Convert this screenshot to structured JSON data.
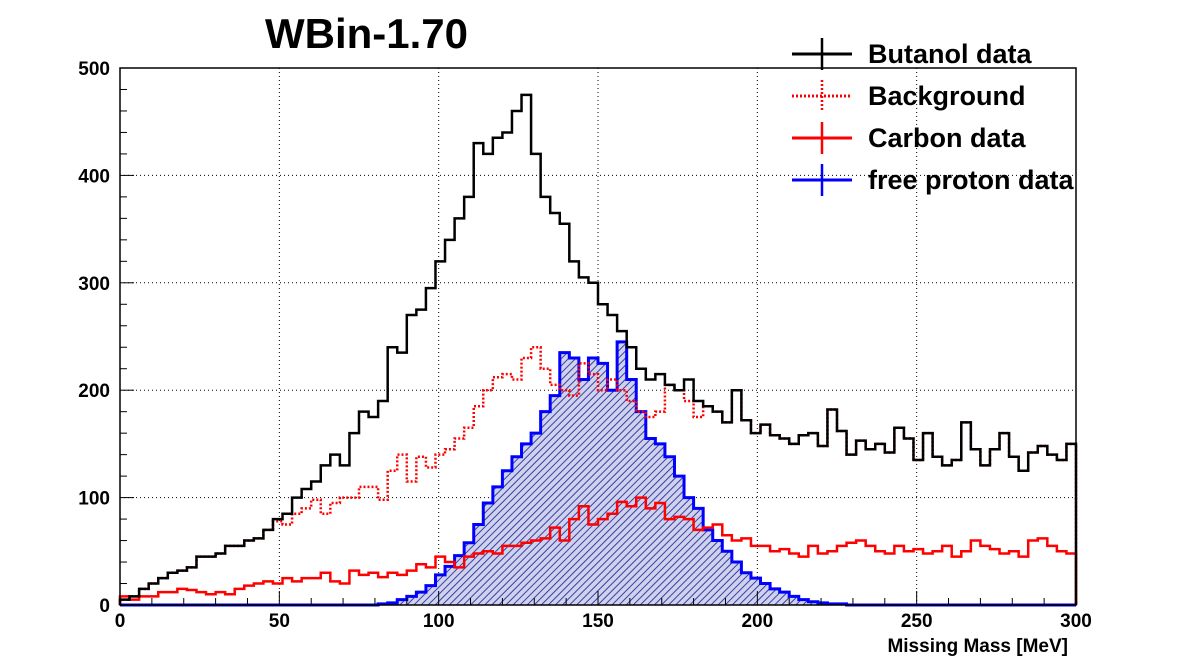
{
  "chart_data": {
    "type": "histogram",
    "title": "WBin-1.70",
    "xlabel": "Missing Mass [MeV]",
    "ylabel": "",
    "xlim": [
      0,
      300
    ],
    "ylim": [
      0,
      500
    ],
    "grid": true,
    "legend_position": "top-right",
    "bin_width": 3,
    "x_ticks": [
      0,
      50,
      100,
      150,
      200,
      250,
      300
    ],
    "y_ticks": [
      0,
      100,
      200,
      300,
      400,
      500
    ],
    "series": [
      {
        "name": "free proton data",
        "color": "#0000ff",
        "style": "solid-hatched",
        "values": [
          0,
          0,
          0,
          0,
          0,
          0,
          0,
          0,
          0,
          0,
          0,
          0,
          0,
          0,
          0,
          0,
          0,
          0,
          0,
          0,
          0,
          0,
          0,
          0,
          0,
          0,
          0,
          1,
          2,
          5,
          8,
          12,
          18,
          28,
          36,
          46,
          58,
          75,
          95,
          110,
          125,
          138,
          150,
          160,
          180,
          195,
          235,
          230,
          210,
          230,
          225,
          200,
          245,
          210,
          180,
          155,
          150,
          138,
          120,
          100,
          90,
          70,
          60,
          50,
          40,
          30,
          25,
          20,
          15,
          12,
          8,
          5,
          3,
          2,
          1,
          1,
          0,
          0,
          0,
          0,
          0,
          0,
          0,
          0,
          0,
          0,
          0,
          0,
          0,
          0,
          0,
          0,
          0,
          0,
          0,
          0,
          0,
          0,
          0,
          0
        ]
      },
      {
        "name": "Carbon data",
        "color": "#ff0000",
        "style": "solid",
        "values": [
          8,
          5,
          8,
          8,
          12,
          12,
          15,
          14,
          12,
          10,
          12,
          10,
          15,
          18,
          20,
          22,
          20,
          25,
          22,
          25,
          25,
          30,
          22,
          20,
          32,
          28,
          30,
          26,
          30,
          28,
          32,
          38,
          35,
          45,
          40,
          35,
          45,
          48,
          50,
          48,
          55,
          55,
          58,
          60,
          62,
          72,
          60,
          80,
          92,
          75,
          80,
          85,
          96,
          92,
          100,
          90,
          95,
          80,
          82,
          80,
          70,
          72,
          75,
          65,
          60,
          62,
          55,
          55,
          50,
          52,
          48,
          45,
          55,
          48,
          50,
          55,
          58,
          60,
          55,
          50,
          48,
          55,
          50,
          52,
          48,
          50,
          55,
          45,
          50,
          60,
          55,
          52,
          48,
          50,
          45,
          60,
          62,
          55,
          50,
          48
        ]
      },
      {
        "name": "Background",
        "color": "#ff0000",
        "style": "dotted",
        "values": [
          5,
          8,
          15,
          20,
          25,
          30,
          32,
          35,
          45,
          45,
          48,
          55,
          55,
          60,
          62,
          70,
          78,
          75,
          85,
          90,
          98,
          85,
          95,
          100,
          100,
          110,
          110,
          98,
          125,
          140,
          115,
          138,
          128,
          140,
          145,
          155,
          165,
          185,
          200,
          212,
          215,
          210,
          230,
          240,
          220,
          205,
          200,
          195,
          225,
          215,
          200,
          210,
          200,
          190,
          180,
          175,
          180,
          205,
          200,
          190,
          175,
          185,
          180,
          170,
          200,
          172,
          160,
          168,
          158,
          155,
          150,
          158,
          160,
          148,
          182,
          162,
          140,
          153,
          145,
          150,
          142,
          165,
          155,
          135,
          160,
          138,
          130,
          135,
          170,
          145,
          130,
          145,
          160,
          138,
          125,
          142,
          148,
          140,
          135,
          150
        ]
      },
      {
        "name": "Butanol data",
        "color": "#000000",
        "style": "solid",
        "values": [
          5,
          8,
          15,
          20,
          25,
          30,
          32,
          35,
          45,
          45,
          48,
          55,
          55,
          60,
          62,
          70,
          80,
          85,
          100,
          108,
          115,
          130,
          140,
          130,
          160,
          180,
          175,
          190,
          240,
          235,
          270,
          275,
          295,
          320,
          340,
          360,
          380,
          430,
          420,
          435,
          440,
          460,
          475,
          420,
          380,
          365,
          355,
          320,
          305,
          300,
          280,
          270,
          255,
          240,
          220,
          210,
          215,
          205,
          200,
          210,
          190,
          185,
          180,
          170,
          200,
          172,
          160,
          168,
          158,
          155,
          150,
          158,
          160,
          148,
          182,
          162,
          140,
          153,
          145,
          150,
          142,
          165,
          155,
          135,
          160,
          138,
          130,
          135,
          170,
          145,
          130,
          145,
          160,
          138,
          125,
          142,
          148,
          140,
          135,
          150
        ]
      }
    ]
  }
}
